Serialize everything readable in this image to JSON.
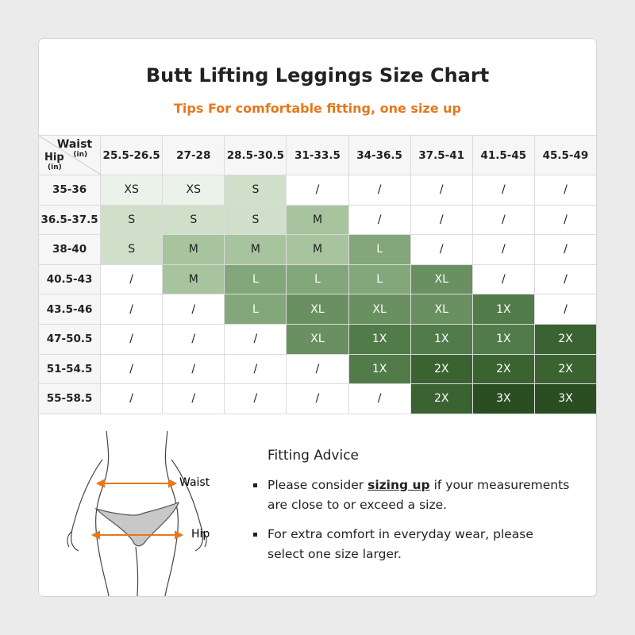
{
  "header": {
    "title": "Butt Lifting Leggings Size Chart",
    "subtitle": "Tips For comfortable fitting, one size up"
  },
  "table": {
    "corner": {
      "col_label": "Waist",
      "col_unit": "(in)",
      "row_label": "Hip",
      "row_unit": "(in)"
    },
    "columns": [
      "25.5-26.5",
      "27-28",
      "28.5-30.5",
      "31-33.5",
      "34-36.5",
      "37.5-41",
      "41.5-45",
      "45.5-49"
    ],
    "rows": [
      {
        "label": "35-36",
        "cells": [
          "XS",
          "XS",
          "S",
          "/",
          "/",
          "/",
          "/",
          "/"
        ]
      },
      {
        "label": "36.5-37.5",
        "cells": [
          "S",
          "S",
          "S",
          "M",
          "/",
          "/",
          "/",
          "/"
        ]
      },
      {
        "label": "38-40",
        "cells": [
          "S",
          "M",
          "M",
          "M",
          "L",
          "/",
          "/",
          "/"
        ]
      },
      {
        "label": "40.5-43",
        "cells": [
          "/",
          "M",
          "L",
          "L",
          "L",
          "XL",
          "/",
          "/"
        ]
      },
      {
        "label": "43.5-46",
        "cells": [
          "/",
          "/",
          "L",
          "XL",
          "XL",
          "XL",
          "1X",
          "/"
        ]
      },
      {
        "label": "47-50.5",
        "cells": [
          "/",
          "/",
          "/",
          "XL",
          "1X",
          "1X",
          "1X",
          "2X"
        ]
      },
      {
        "label": "51-54.5",
        "cells": [
          "/",
          "/",
          "/",
          "/",
          "1X",
          "2X",
          "2X",
          "2X"
        ]
      },
      {
        "label": "55-58.5",
        "cells": [
          "/",
          "/",
          "/",
          "/",
          "/",
          "2X",
          "3X",
          "3X"
        ]
      }
    ],
    "size_colors": [
      {
        "size": "XS",
        "color": "#ebf2e9",
        "text_color": "#222"
      },
      {
        "size": "S",
        "color": "#cfdfca",
        "text_color": "#222"
      },
      {
        "size": "M",
        "color": "#a8c49f",
        "text_color": "#222"
      },
      {
        "size": "L",
        "color": "#83a77a",
        "text_color": "#fff"
      },
      {
        "size": "XL",
        "color": "#6a9061",
        "text_color": "#fff"
      },
      {
        "size": "1X",
        "color": "#527b4a",
        "text_color": "#fff"
      },
      {
        "size": "2X",
        "color": "#3b6332",
        "text_color": "#fff"
      },
      {
        "size": "3X",
        "color": "#2a4e21",
        "text_color": "#fff"
      }
    ]
  },
  "figure": {
    "waist": "Waist",
    "hip": "Hip"
  },
  "advice": {
    "title": "Fitting Advice",
    "items": [
      {
        "before": "Please consider ",
        "emphasis": "sizing up",
        "after": " if your measurements are close to or exceed a size."
      },
      {
        "before": "For extra comfort in everyday wear, please select one size larger."
      }
    ]
  }
}
